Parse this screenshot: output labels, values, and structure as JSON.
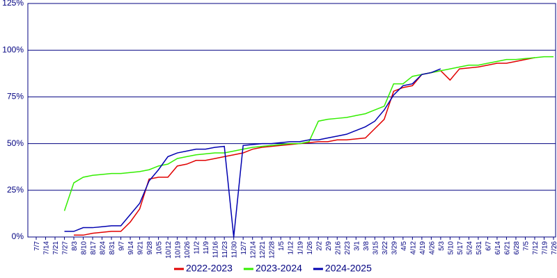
{
  "chart_data": {
    "type": "line",
    "categories": [
      "7/7",
      "7/14",
      "7/21",
      "7/27",
      "8/3",
      "8/10",
      "8/17",
      "8/24",
      "8/31",
      "9/7",
      "9/14",
      "9/21",
      "9/28",
      "10/5",
      "10/12",
      "10/19",
      "10/26",
      "11/2",
      "11/9",
      "11/16",
      "11/23",
      "11/30",
      "12/7",
      "12/14",
      "12/21",
      "12/28",
      "1/5",
      "1/12",
      "1/19",
      "1/26",
      "2/2",
      "2/9",
      "2/16",
      "2/23",
      "3/1",
      "3/8",
      "3/15",
      "3/22",
      "3/29",
      "4/5",
      "4/12",
      "4/19",
      "4/26",
      "5/3",
      "5/10",
      "5/17",
      "5/24",
      "5/31",
      "6/7",
      "6/14",
      "6/21",
      "6/28",
      "7/5",
      "7/12",
      "7/19",
      "7/26"
    ],
    "series": [
      {
        "name": "2022-2023",
        "color": "#e00000",
        "values": [
          null,
          null,
          null,
          null,
          1,
          1,
          2,
          2.5,
          3,
          3,
          8,
          15,
          31,
          32,
          32,
          38,
          39,
          41,
          41,
          42,
          43,
          44,
          45,
          47,
          48,
          48.5,
          49,
          49.5,
          50,
          50.5,
          51,
          51,
          52,
          52,
          52.5,
          53,
          58,
          63,
          78,
          80,
          81,
          87,
          88,
          89,
          84,
          90,
          90.5,
          91,
          92,
          93,
          93,
          94,
          95,
          96,
          null,
          null
        ]
      },
      {
        "name": "2023-2024",
        "color": "#33ee00",
        "values": [
          null,
          null,
          null,
          14,
          29,
          32,
          33,
          33.5,
          34,
          34,
          34.5,
          35,
          36,
          38,
          39,
          42,
          43,
          44,
          44.5,
          45,
          45,
          46,
          47,
          48,
          48.5,
          49,
          49.5,
          50,
          50,
          51,
          62,
          63,
          63.5,
          64,
          65,
          66,
          68,
          70,
          82,
          82,
          86,
          87,
          88,
          89,
          90,
          91,
          92,
          92,
          93,
          94,
          95,
          95,
          95.5,
          96,
          96.5,
          96.5
        ]
      },
      {
        "name": "2024-2025",
        "color": "#0000b0",
        "values": [
          null,
          null,
          null,
          3,
          3,
          5,
          5,
          5.5,
          6,
          6,
          12,
          18,
          30,
          36,
          43,
          45,
          46,
          47,
          47,
          48,
          48.5,
          0,
          49,
          49.5,
          50,
          50,
          50.5,
          51,
          51,
          52,
          52,
          53,
          54,
          55,
          57,
          59,
          62,
          68,
          76,
          81,
          82,
          87,
          88,
          90,
          null,
          null,
          null,
          null,
          null,
          null,
          null,
          null,
          null,
          null,
          null,
          null
        ]
      }
    ],
    "ylim": [
      0,
      125
    ],
    "yticks": [
      {
        "value": 0,
        "label": "0%"
      },
      {
        "value": 25,
        "label": "25%"
      },
      {
        "value": 50,
        "label": "50%"
      },
      {
        "value": 75,
        "label": "75%"
      },
      {
        "value": 100,
        "label": "100%"
      },
      {
        "value": 125,
        "label": "125%"
      }
    ],
    "grid": true
  }
}
